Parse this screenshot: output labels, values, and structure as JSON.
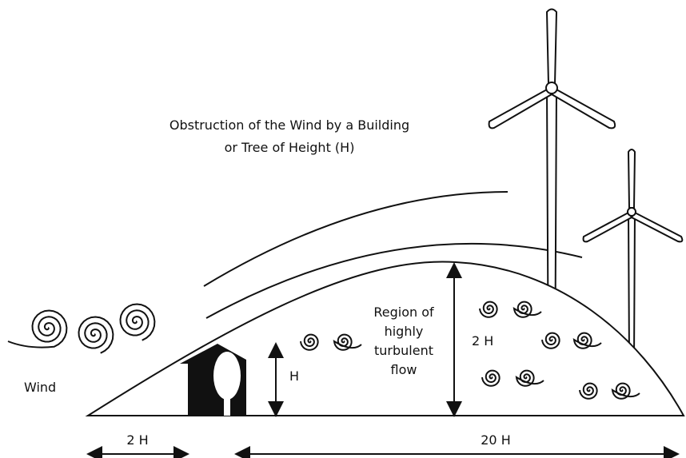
{
  "title": [
    "Obstruction of the Wind by a Building",
    "or Tree of Height (H)"
  ],
  "labels": {
    "wind": "Wind",
    "height": "H",
    "region": [
      "Region of",
      "highly",
      "turbulent",
      "flow"
    ],
    "region_height": "2 H",
    "upwind_distance": "2 H",
    "downwind_distance": "20 H"
  }
}
